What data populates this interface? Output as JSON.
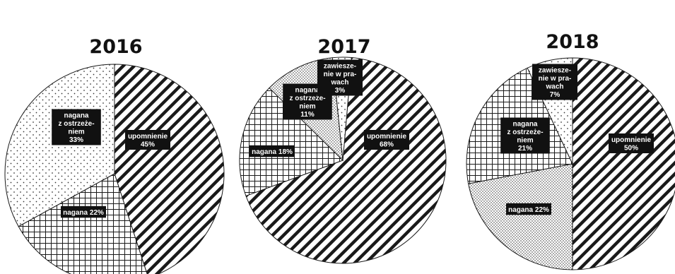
{
  "chart_data": [
    {
      "type": "pie",
      "title": "2016",
      "slices": [
        {
          "label_lines": [
            "upomnienie",
            "45%"
          ],
          "value": 45,
          "pattern": "diagonal-hatch"
        },
        {
          "label_lines": [
            "nagana 22%"
          ],
          "value": 22,
          "pattern": "grid-hatch"
        },
        {
          "label_lines": [
            "nagana",
            "z ostrzeże-",
            "niem",
            "33%"
          ],
          "value": 33,
          "pattern": "sparse-dots"
        }
      ]
    },
    {
      "type": "pie",
      "title": "2017",
      "slices": [
        {
          "label_lines": [
            "upomnienie",
            "68%"
          ],
          "value": 68,
          "pattern": "diagonal-hatch"
        },
        {
          "label_lines": [
            "nagana 18%"
          ],
          "value": 18,
          "pattern": "grid-hatch"
        },
        {
          "label_lines": [
            "nagana",
            "z ostrzeże-",
            "niem",
            "11%"
          ],
          "value": 11,
          "pattern": "dense-dots"
        },
        {
          "label_lines": [
            "zawiesze-",
            "nie w pra-",
            "wach",
            "3%"
          ],
          "value": 3,
          "pattern": "sparse-dots"
        }
      ]
    },
    {
      "type": "pie",
      "title": "2018",
      "slices": [
        {
          "label_lines": [
            "upomnienie",
            "50%"
          ],
          "value": 50,
          "pattern": "diagonal-hatch"
        },
        {
          "label_lines": [
            "nagana 22%"
          ],
          "value": 22,
          "pattern": "dense-dots"
        },
        {
          "label_lines": [
            "nagana",
            "z ostrzeże-",
            "niem",
            "21%"
          ],
          "value": 21,
          "pattern": "grid-hatch"
        },
        {
          "label_lines": [
            "zawiesze-",
            "nie w pra-",
            "wach",
            "7%"
          ],
          "value": 7,
          "pattern": "sparse-dots"
        }
      ]
    }
  ]
}
